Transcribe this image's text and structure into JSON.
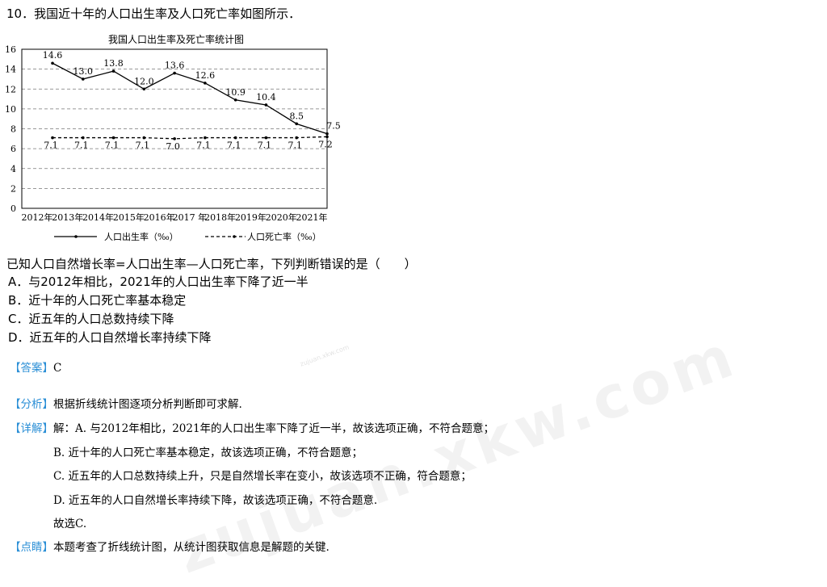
{
  "question": {
    "title": "10．我国近十年的人口出生率及人口死亡率如图所示．",
    "stem": "已知人口自然增长率=人口出生率—人口死亡率，下列判断错误的是（　　）",
    "options": [
      "A．与2012年相比，2021年的人口出生率下降了近一半",
      "B．近十年的人口死亡率基本稳定",
      "C．近五年的人口总数持续下降",
      "D．近五年的人口自然增长率持续下降"
    ]
  },
  "chart_data": {
    "type": "line",
    "title": "我国人口出生率及死亡率统计图",
    "categories": [
      "2012年",
      "2013年",
      "2014年",
      "2015年",
      "2016年",
      "2017 年",
      "2018年",
      "2019年",
      "2020年",
      "2021年"
    ],
    "yticks": [
      0,
      2,
      4,
      6,
      8,
      10,
      12,
      14,
      16
    ],
    "ylim": [
      0,
      16
    ],
    "series": [
      {
        "name": "人口出生率（‰）",
        "values": [
          14.6,
          13.0,
          13.8,
          12.0,
          13.6,
          12.6,
          10.9,
          10.4,
          8.5,
          7.5
        ],
        "style": "solid",
        "labels": [
          "14.6",
          "13.0",
          "13.8",
          "12.0",
          "13.6",
          "12.6",
          "10.9",
          "10.4",
          "8.5",
          "7.5"
        ]
      },
      {
        "name": "人口死亡率（‰）",
        "values": [
          7.1,
          7.1,
          7.1,
          7.1,
          7.0,
          7.1,
          7.1,
          7.1,
          7.1,
          7.2
        ],
        "style": "dashed",
        "labels": [
          "7.1",
          "7.1",
          "7.1",
          "7.1",
          "7.0",
          "7.1",
          "7.1",
          "7.1",
          "7.1",
          "7.2"
        ]
      }
    ],
    "grid": "dashed horizontal",
    "legend": "bottom",
    "color": "#000000"
  },
  "solution": {
    "answer_tag": "【答案】",
    "answer": "C",
    "analysis_tag": "【分析】",
    "analysis": "根据折线统计图逐项分析判断即可求解.",
    "detail_tag": "【详解】",
    "detail_lines": [
      "解：A. 与2012年相比，2021年的人口出生率下降了近一半，故该选项正确，不符合题意；",
      "B. 近十年的人口死亡率基本稳定，故该选项正确，不符合题意；",
      "C. 近五年的人口总数持续上升，只是自然增长率在变小，故该选项不正确，符合题意；",
      "D. 近五年的人口自然增长率持续下降，故该选项正确，不符合题意."
    ],
    "conclusion": "故选C.",
    "comment_tag": "【点睛】",
    "comment": "本题考查了折线统计图，从统计图获取信息是解题的关键."
  },
  "watermark": {
    "small": "zujuan.xkw.com",
    "large": "zujuan.xkw.com"
  },
  "accent_color": "#2b8fd6"
}
